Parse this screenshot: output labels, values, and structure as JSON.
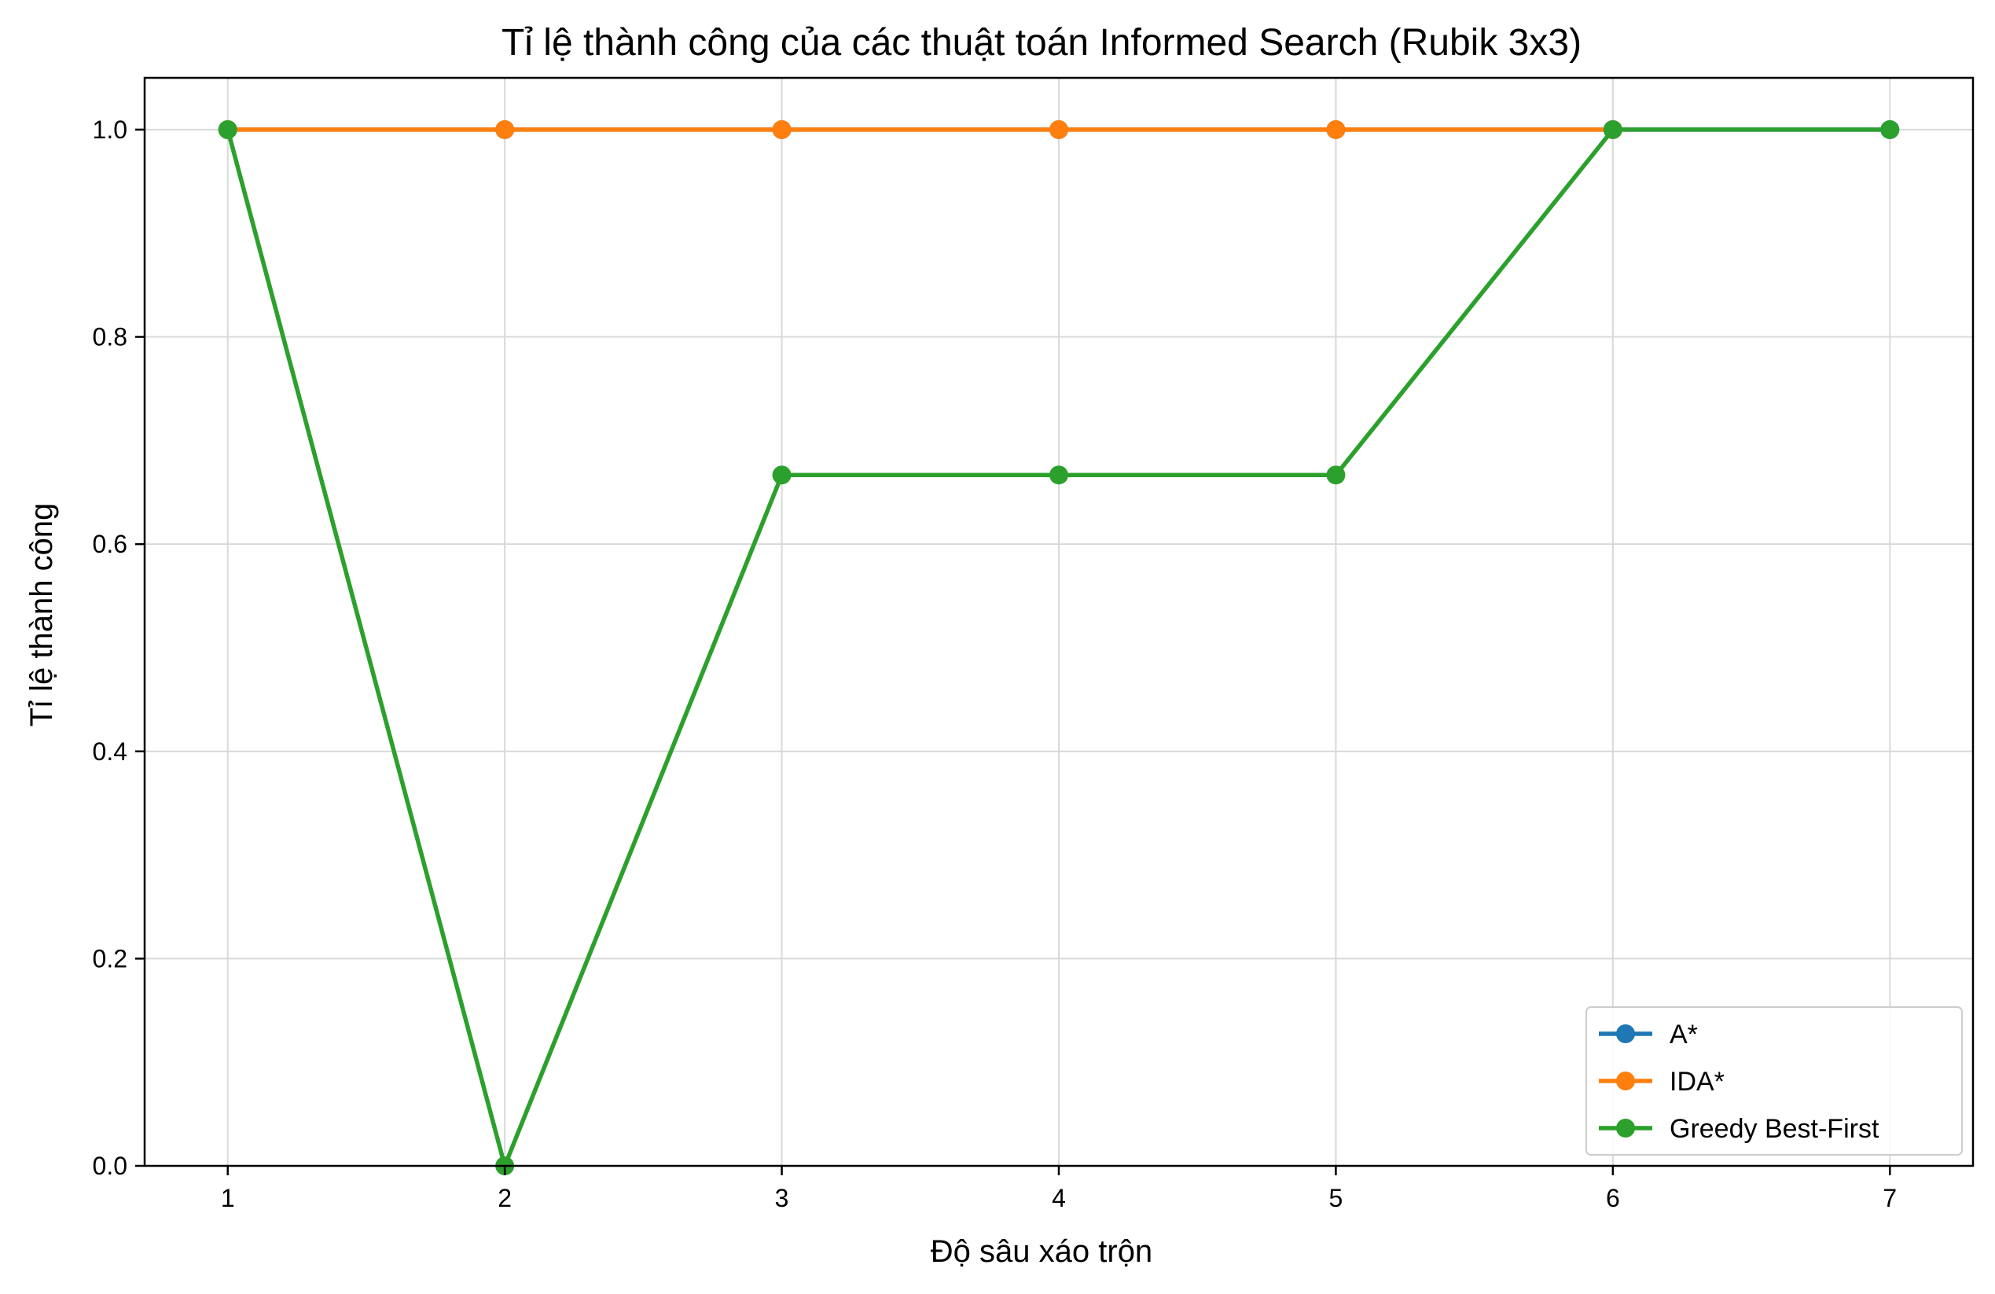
{
  "chart_data": {
    "type": "line",
    "title": "Tỉ lệ thành công của các thuật toán Informed Search (Rubik 3x3)",
    "xlabel": "Độ sâu xáo trộn",
    "ylabel": "Tỉ lệ thành công",
    "x": [
      1,
      2,
      3,
      4,
      5,
      6,
      7
    ],
    "x_ticks": [
      "1",
      "2",
      "3",
      "4",
      "5",
      "6",
      "7"
    ],
    "xlim": [
      0.7,
      7.3
    ],
    "ylim": [
      0,
      1.05
    ],
    "y_ticks": [
      "0.0",
      "0.2",
      "0.4",
      "0.6",
      "0.8",
      "1.0"
    ],
    "grid": true,
    "legend_position": "bottom-right",
    "series": [
      {
        "name": "A*",
        "color": "#1f77b4",
        "values": [
          1.0,
          1.0,
          1.0,
          1.0,
          1.0,
          1.0,
          1.0
        ]
      },
      {
        "name": "IDA*",
        "color": "#ff7f0e",
        "values": [
          1.0,
          1.0,
          1.0,
          1.0,
          1.0,
          1.0,
          null
        ]
      },
      {
        "name": "Greedy Best-First",
        "color": "#2ca02c",
        "values": [
          1.0,
          0.0,
          0.6667,
          0.6667,
          0.6667,
          1.0,
          1.0
        ]
      }
    ]
  }
}
